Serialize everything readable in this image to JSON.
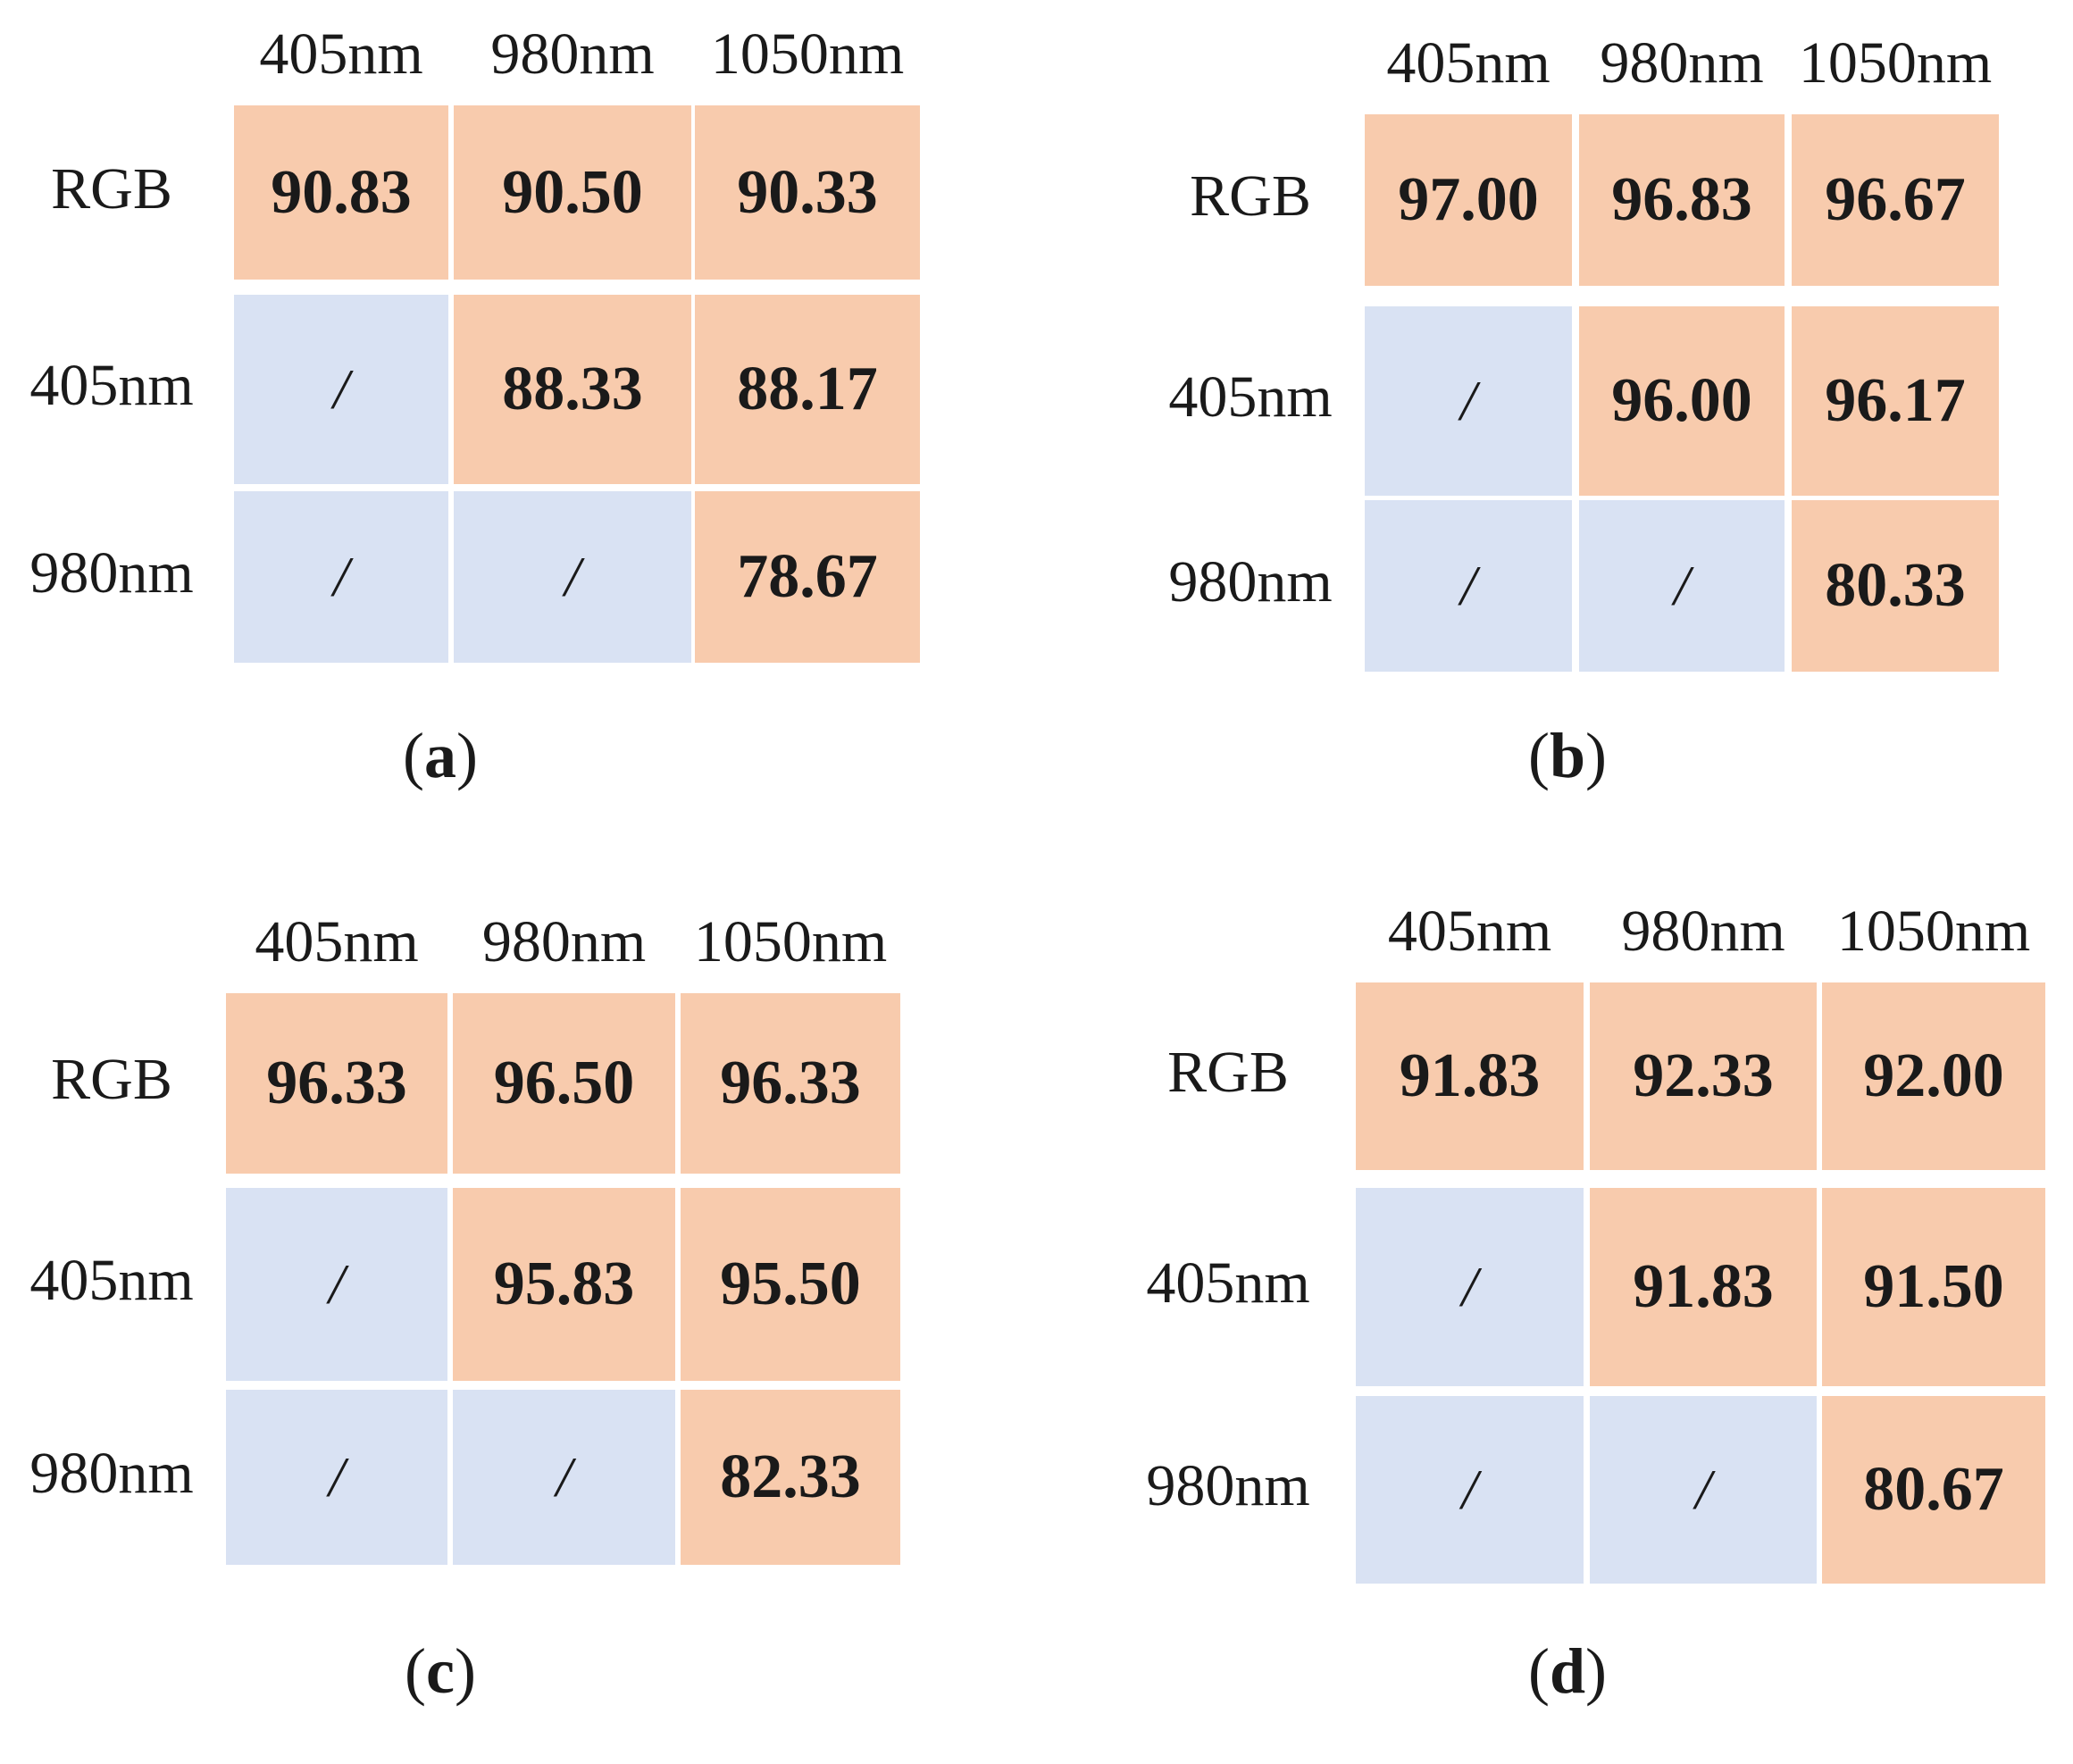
{
  "chart_data": [
    {
      "type": "table",
      "caption": "a",
      "columns": [
        "405nm",
        "980nm",
        "1050nm"
      ],
      "rows": [
        "RGB",
        "405nm",
        "980nm"
      ],
      "values": [
        [
          "90.83",
          "90.50",
          "90.33"
        ],
        [
          "/",
          "88.33",
          "88.17"
        ],
        [
          "/",
          "/",
          "78.67"
        ]
      ]
    },
    {
      "type": "table",
      "caption": "b",
      "columns": [
        "405nm",
        "980nm",
        "1050nm"
      ],
      "rows": [
        "RGB",
        "405nm",
        "980nm"
      ],
      "values": [
        [
          "97.00",
          "96.83",
          "96.67"
        ],
        [
          "/",
          "96.00",
          "96.17"
        ],
        [
          "/",
          "/",
          "80.33"
        ]
      ]
    },
    {
      "type": "table",
      "caption": "c",
      "columns": [
        "405nm",
        "980nm",
        "1050nm"
      ],
      "rows": [
        "RGB",
        "405nm",
        "980nm"
      ],
      "values": [
        [
          "96.33",
          "96.50",
          "96.33"
        ],
        [
          "/",
          "95.83",
          "95.50"
        ],
        [
          "/",
          "/",
          "82.33"
        ]
      ]
    },
    {
      "type": "table",
      "caption": "d",
      "columns": [
        "405nm",
        "980nm",
        "1050nm"
      ],
      "rows": [
        "RGB",
        "405nm",
        "980nm"
      ],
      "values": [
        [
          "91.83",
          "92.33",
          "92.00"
        ],
        [
          "/",
          "91.83",
          "91.50"
        ],
        [
          "/",
          "/",
          "80.67"
        ]
      ]
    }
  ],
  "colors": {
    "value_cell": "#f8cbad",
    "empty_cell": "#d9e2f3"
  }
}
